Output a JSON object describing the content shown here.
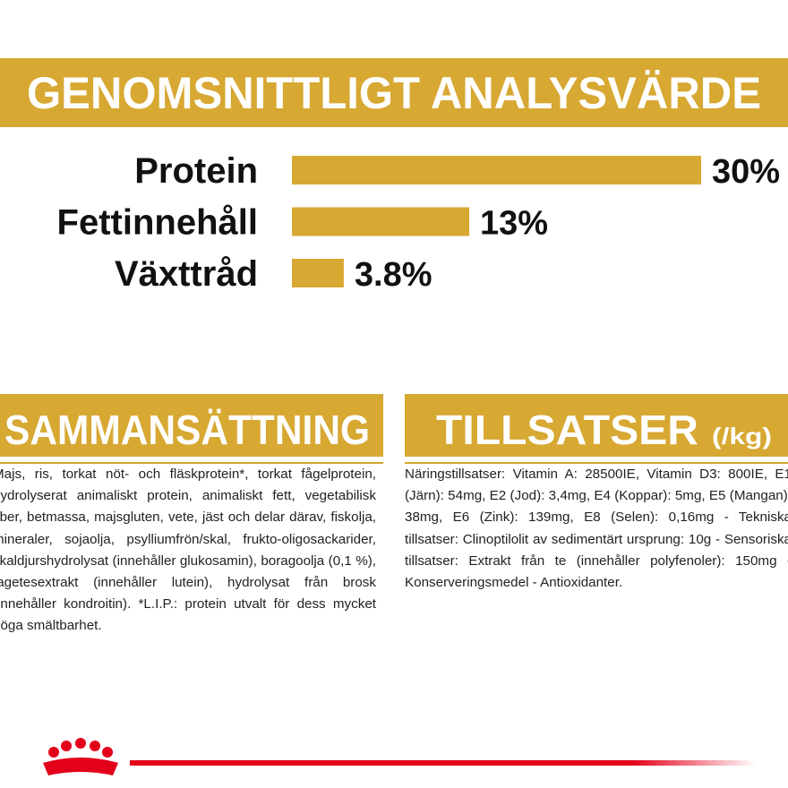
{
  "chart_data": {
    "type": "bar",
    "title": "GENOMSNITTLIGT ANALYSVÄRDE",
    "categories": [
      "Protein",
      "Fettinnehåll",
      "Växttråd"
    ],
    "values": [
      30,
      13,
      3.8
    ],
    "value_labels": [
      "30%",
      "13%",
      "3.8%"
    ],
    "color": "#d7a832"
  },
  "composition": {
    "title": "SAMMANSÄTTNING",
    "text": "Majs, ris, torkat nöt- och fläskprotein*, torkat fågelprotein, hydrolyserat animaliskt protein, animaliskt fett, vegetabilisk fiber, betmassa, majsgluten, vete, jäst och delar därav, fiskolja, mineraler, sojaolja, psylliumfrön/skal, frukto-oligosackarider, skaldjurshydrolysat (innehåller glukosamin), boragoolja (0,1 %), tagetesextrakt (innehåller lutein), hydrolysat från brosk (innehåller kondroitin). *L.I.P.: protein utvalt för dess mycket höga smältbarhet."
  },
  "additives": {
    "title": "TILLSATSER",
    "unit": "(/kg)",
    "text": "Näringstillsatser: Vitamin A: 28500IE, Vitamin D3: 800IE, E1 (Järn): 54mg, E2 (Jod): 3,4mg, E4 (Koppar): 5mg, E5 (Mangan): 38mg, E6 (Zink): 139mg, E8 (Selen): 0,16mg - Tekniska tillsatser: Clinoptilolit av sedimentärt ursprung: 10g - Sensoriska tillsatser: Extrakt från te (innehåller polyfenoler): 150mg - Konserveringsmedel - Antioxidanter."
  }
}
